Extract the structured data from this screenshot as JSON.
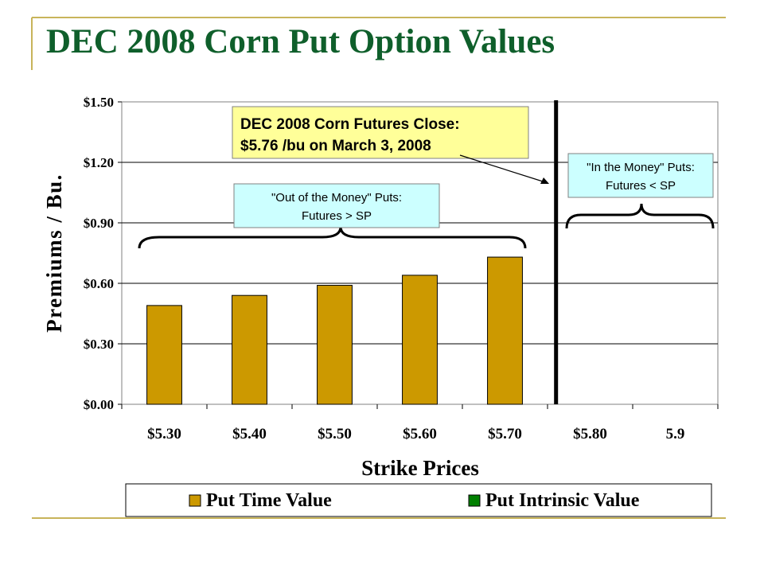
{
  "slide": {
    "title": "DEC 2008 Corn Put Option Values",
    "accent_color": "#c8b45a",
    "title_color": "#0f5f2b"
  },
  "chart_data": {
    "type": "bar",
    "title": "",
    "xlabel": "Strike Prices",
    "ylabel": "Premiums / Bu.",
    "ylim": [
      0,
      1.5
    ],
    "yticks": [
      0,
      0.3,
      0.6,
      0.9,
      1.2,
      1.5
    ],
    "ytick_labels": [
      "$0.00",
      "$0.30",
      "$0.60",
      "$0.90",
      "$1.20",
      "$1.50"
    ],
    "categories": [
      "$5.30",
      "$5.40",
      "$5.50",
      "$5.60",
      "$5.70",
      "$5.80",
      "5.9"
    ],
    "grid": "horizontal",
    "stacked": true,
    "series": [
      {
        "name": "Put Time Value",
        "color": "#cc9900",
        "values": [
          0.49,
          0.54,
          0.59,
          0.64,
          0.73,
          0,
          0
        ]
      },
      {
        "name": "Put Intrinsic Value",
        "color": "#008000",
        "values": [
          0,
          0,
          0,
          0,
          0,
          0,
          0
        ]
      }
    ],
    "legend_position": "bottom",
    "futures_close_line_x": 5.76,
    "annotations": {
      "futures_box": {
        "line1": "DEC 2008 Corn Futures Close:",
        "line2": "$5.76 /bu on March 3, 2008",
        "fill": "#ffff99"
      },
      "out_of_money_box": {
        "line1": "\"Out of the Money\" Puts:",
        "line2": "Futures > SP",
        "fill": "#ccffff"
      },
      "in_money_box": {
        "line1": "\"In the Money\" Puts:",
        "line2": "Futures < SP",
        "fill": "#ccffff"
      }
    }
  }
}
